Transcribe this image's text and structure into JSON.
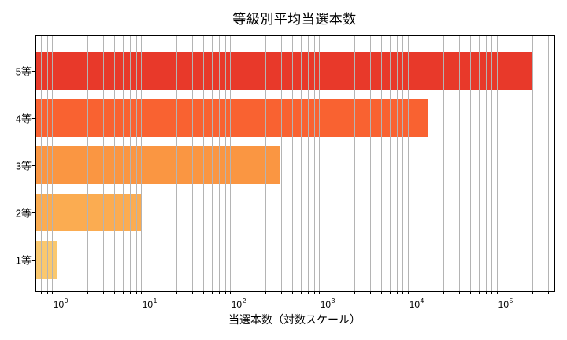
{
  "title": "等級別平均当選本数",
  "xlabel": "当選本数（対数スケール）",
  "chart_data": {
    "type": "bar",
    "orientation": "horizontal",
    "title": "等級別平均当選本数",
    "xlabel": "当選本数（対数スケール）",
    "ylabel": "",
    "categories": [
      "5等",
      "4等",
      "3等",
      "2等",
      "1等"
    ],
    "values": [
      200000,
      13000,
      280,
      8,
      0.9
    ],
    "bar_colors": [
      "#e8392a",
      "#f96231",
      "#fa9642",
      "#fbac51",
      "#fac86e"
    ],
    "xscale": "log",
    "xlim": [
      0.52,
      347000
    ],
    "x_tick_values": [
      1,
      10,
      100,
      1000,
      10000,
      100000
    ],
    "x_tick_base": "10",
    "x_tick_exponents": [
      "0",
      "1",
      "2",
      "3",
      "4",
      "5"
    ],
    "grid": "x-major-and-minor",
    "grid_color": "#b4b4b4",
    "grid_above_bars": true,
    "spine_color": "#000000",
    "background_color": "#ffffff",
    "legend": "none"
  }
}
